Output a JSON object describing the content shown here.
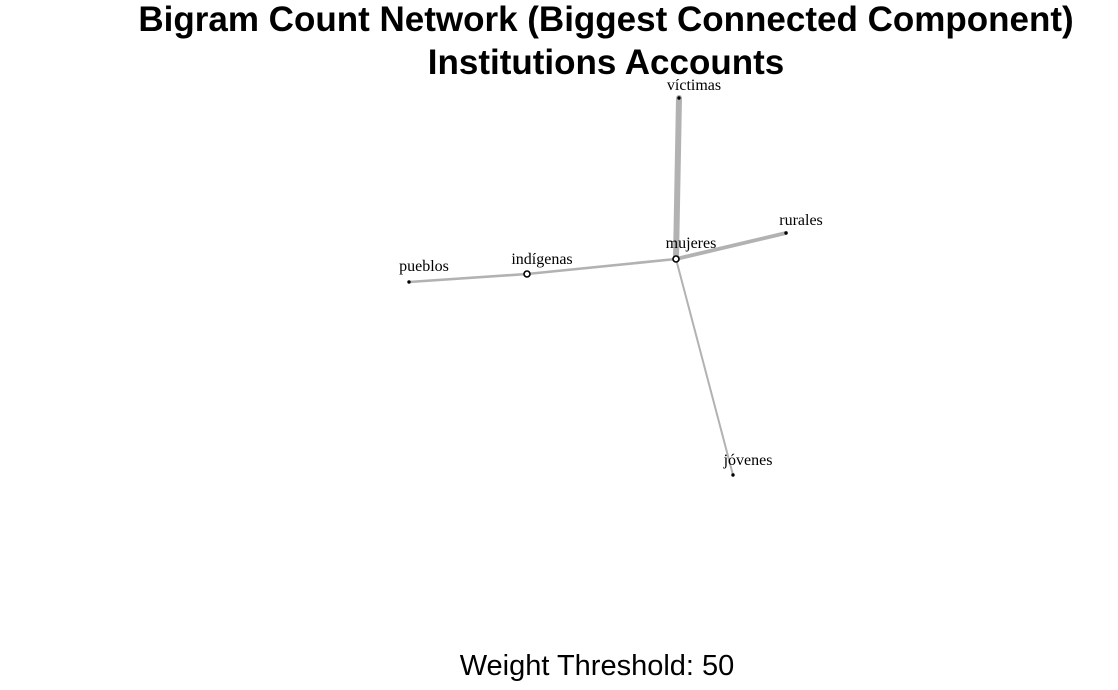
{
  "title": {
    "line1": "Bigram Count Network (Biggest Connected Component)",
    "line2": "Institutions Accounts"
  },
  "caption": "Weight Threshold: 50",
  "colors": {
    "edge": "#b2b2b2",
    "node": "#000000",
    "background": "#ffffff"
  },
  "chart_data": {
    "type": "network",
    "nodes": [
      {
        "id": "mujeres",
        "label": "mujeres"
      },
      {
        "id": "víctimas",
        "label": "víctimas"
      },
      {
        "id": "rurales",
        "label": "rurales"
      },
      {
        "id": "indígenas",
        "label": "indígenas"
      },
      {
        "id": "pueblos",
        "label": "pueblos"
      },
      {
        "id": "jóvenes",
        "label": "jóvenes"
      }
    ],
    "edges": [
      {
        "source": "mujeres",
        "target": "víctimas",
        "weight": 120
      },
      {
        "source": "mujeres",
        "target": "rurales",
        "weight": 85
      },
      {
        "source": "mujeres",
        "target": "indígenas",
        "weight": 65
      },
      {
        "source": "pueblos",
        "target": "indígenas",
        "weight": 65
      },
      {
        "source": "mujeres",
        "target": "jóvenes",
        "weight": 55
      }
    ]
  }
}
